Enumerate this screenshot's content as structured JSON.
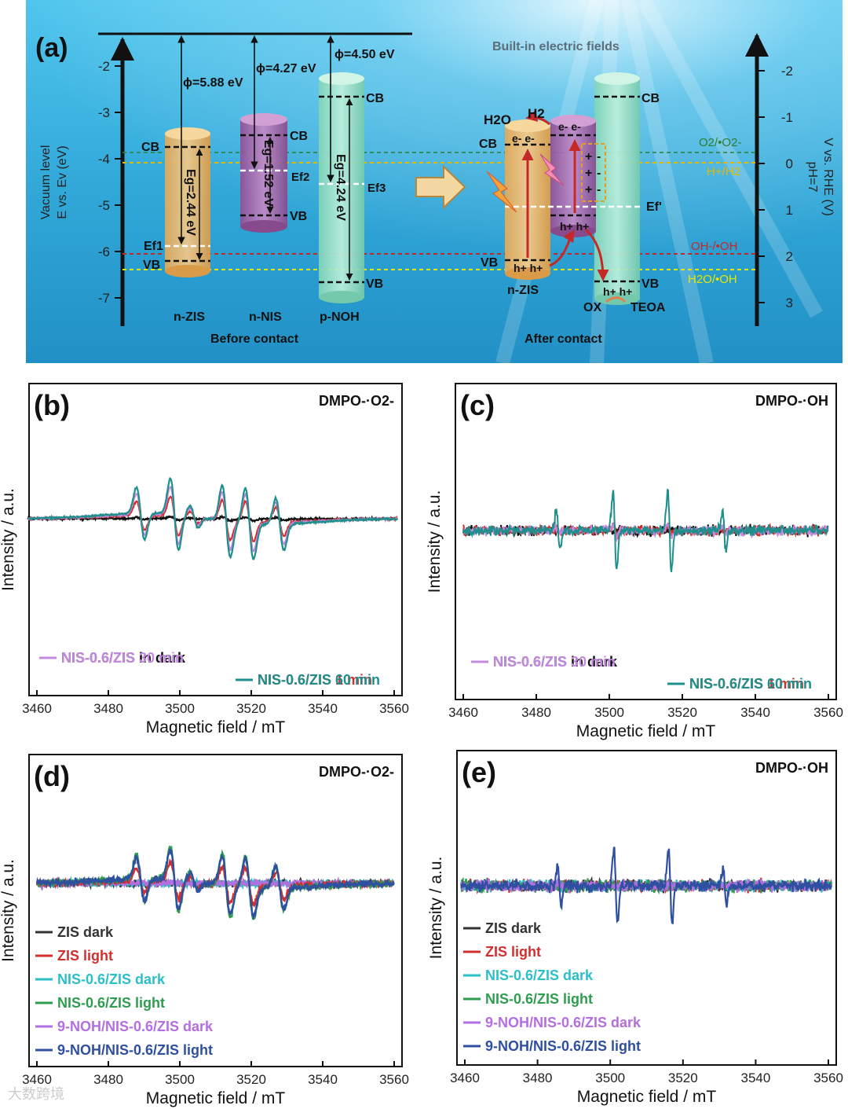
{
  "panel_a": {
    "label": "(a)",
    "left_axis_title_1": "Vacuum level",
    "left_axis_title_2": "E vs. Ev (eV)",
    "left_ticks": [
      "-2",
      "-3",
      "-4",
      "-5",
      "-6",
      "-7"
    ],
    "right_axis_title_1": "V vs. RHE (V)",
    "right_axis_title_2": "pH=7",
    "right_ticks": [
      "-2",
      "-1",
      "0",
      "1",
      "2",
      "3"
    ],
    "phi_zis": "ϕ=5.88 eV",
    "phi_nis": "ϕ=4.27 eV",
    "phi_noh": "ϕ=4.50 eV",
    "eg_zis": "Eg=2.44 eV",
    "eg_nis": "Eg=1.52 eV",
    "eg_noh": "Eg=4.24 eV",
    "cb": "CB",
    "vb": "VB",
    "ef1": "Ef1",
    "ef2": "Ef2",
    "ef3": "Ef3",
    "efr": "Ef'",
    "n_zis": "n-ZIS",
    "n_nis": "n-NIS",
    "p_noh": "p-NOH",
    "before": "Before contact",
    "after": "After contact",
    "builtin": "Built-in electric fields",
    "h2o": "H2O",
    "h2": "H2",
    "electrons": "e- e-",
    "holes": "h+ h+",
    "ox": "OX",
    "teoa": "TEOA",
    "o2_label": "O2/•O2-",
    "h_label": "H+/H2",
    "oh_label": "OH-/•OH",
    "h2o_oh_label": "H2O/•OH",
    "plus": "+",
    "minus": "-",
    "colors": {
      "o2": "#2e7d32",
      "h": "#e6b800",
      "oh": "#c62828",
      "h2o": "#e6e600",
      "zis": "#e8b86a",
      "nis": "#a86aa8",
      "noh": "#9ee0c0"
    }
  },
  "panels": [
    {
      "label": "(b)",
      "species": "DMPO-·O2-",
      "ylabel": "Intensity / a.u.",
      "xlabel": "Magnetic field / mT",
      "xticks": [
        "3460",
        "3480",
        "3500",
        "3520",
        "3540",
        "3560"
      ],
      "legend": [
        {
          "text": "NIS-0.6/ZIS in dark",
          "color": "#111111"
        },
        {
          "text": "NIS-0.6/ZIS 1 min",
          "color": "#d32f2f"
        },
        {
          "text": "NIS-0.6/ZIS 30 min",
          "color": "#c38ae0"
        },
        {
          "text": "NIS-0.6/ZIS 60 min",
          "color": "#1e8f8a"
        }
      ]
    },
    {
      "label": "(c)",
      "species": "DMPO-·OH",
      "ylabel": "Intensity / a.u.",
      "xlabel": "Magnetic field / mT",
      "xticks": [
        "3460",
        "3480",
        "3500",
        "3520",
        "3540",
        "3560"
      ],
      "legend": [
        {
          "text": "NIS-0.6/ZIS in dark",
          "color": "#111111"
        },
        {
          "text": "NIS-0.6/ZIS 1 min",
          "color": "#d32f2f"
        },
        {
          "text": "NIS-0.6/ZIS 30 min",
          "color": "#c38ae0"
        },
        {
          "text": "NIS-0.6/ZIS 60 min",
          "color": "#1e8f8a"
        }
      ]
    },
    {
      "label": "(d)",
      "species": "DMPO-·O2-",
      "ylabel": "Intensity / a.u.",
      "xlabel": "Magnetic field / mT",
      "xticks": [
        "3460",
        "3480",
        "3500",
        "3520",
        "3540",
        "3560"
      ],
      "legend": [
        {
          "text": "ZIS dark",
          "color": "#333333"
        },
        {
          "text": "ZIS light",
          "color": "#d32f2f"
        },
        {
          "text": "NIS-0.6/ZIS dark",
          "color": "#2bbfc8"
        },
        {
          "text": "NIS-0.6/ZIS light",
          "color": "#2e9d4f"
        },
        {
          "text": "9-NOH/NIS-0.6/ZIS dark",
          "color": "#b36ee0"
        },
        {
          "text": "9-NOH/NIS-0.6/ZIS light",
          "color": "#2f4fa0"
        }
      ]
    },
    {
      "label": "(e)",
      "species": "DMPO-·OH",
      "ylabel": "Intensity / a.u.",
      "xlabel": "Magnetic field / mT",
      "xticks": [
        "3460",
        "3480",
        "3500",
        "3520",
        "3540",
        "3560"
      ],
      "legend": [
        {
          "text": "ZIS dark",
          "color": "#333333"
        },
        {
          "text": "ZIS light",
          "color": "#d32f2f"
        },
        {
          "text": "NIS-0.6/ZIS dark",
          "color": "#2bbfc8"
        },
        {
          "text": "NIS-0.6/ZIS light",
          "color": "#2e9d4f"
        },
        {
          "text": "9-NOH/NIS-0.6/ZIS dark",
          "color": "#b36ee0"
        },
        {
          "text": "9-NOH/NIS-0.6/ZIS light",
          "color": "#2f4fa0"
        }
      ]
    }
  ],
  "chart_data": [
    {
      "type": "line",
      "title": "DMPO-·O2-",
      "xlabel": "Magnetic field / mT",
      "ylabel": "Intensity / a.u.",
      "xlim": [
        3460,
        3560
      ],
      "pattern": "superoxide_sextet",
      "peak_centers": [
        3489,
        3498,
        3504,
        3513,
        3519,
        3528
      ],
      "series": [
        {
          "name": "NIS-0.6/ZIS in dark",
          "amplitude": 0.05
        },
        {
          "name": "NIS-0.6/ZIS 1 min",
          "amplitude": 0.55
        },
        {
          "name": "NIS-0.6/ZIS 30 min",
          "amplitude": 0.8
        },
        {
          "name": "NIS-0.6/ZIS 60 min",
          "amplitude": 1.0
        }
      ]
    },
    {
      "type": "line",
      "title": "DMPO-·OH",
      "xlabel": "Magnetic field / mT",
      "ylabel": "Intensity / a.u.",
      "xlim": [
        3460,
        3560
      ],
      "pattern": "hydroxyl_quartet",
      "peak_centers": [
        3486,
        3501,
        3516,
        3531
      ],
      "peak_ratio": [
        1,
        2,
        2,
        1
      ],
      "series": [
        {
          "name": "NIS-0.6/ZIS in dark",
          "amplitude": 0.0
        },
        {
          "name": "NIS-0.6/ZIS 1 min",
          "amplitude": 0.1
        },
        {
          "name": "NIS-0.6/ZIS 30 min",
          "amplitude": 0.15
        },
        {
          "name": "NIS-0.6/ZIS 60 min",
          "amplitude": 1.0
        }
      ]
    },
    {
      "type": "line",
      "title": "DMPO-·O2-",
      "xlabel": "Magnetic field / mT",
      "ylabel": "Intensity / a.u.",
      "xlim": [
        3460,
        3560
      ],
      "pattern": "superoxide_sextet",
      "peak_centers": [
        3489,
        3498,
        3504,
        3513,
        3519,
        3528
      ],
      "series": [
        {
          "name": "ZIS dark",
          "amplitude": 0.0
        },
        {
          "name": "ZIS light",
          "amplitude": 0.6
        },
        {
          "name": "NIS-0.6/ZIS dark",
          "amplitude": 0.0
        },
        {
          "name": "NIS-0.6/ZIS light",
          "amplitude": 1.05
        },
        {
          "name": "9-NOH/NIS-0.6/ZIS dark",
          "amplitude": 0.0
        },
        {
          "name": "9-NOH/NIS-0.6/ZIS light",
          "amplitude": 0.95
        }
      ]
    },
    {
      "type": "line",
      "title": "DMPO-·OH",
      "xlabel": "Magnetic field / mT",
      "ylabel": "Intensity / a.u.",
      "xlim": [
        3460,
        3560
      ],
      "pattern": "hydroxyl_quartet",
      "peak_centers": [
        3486,
        3501,
        3516,
        3531
      ],
      "peak_ratio": [
        1,
        2,
        2,
        1
      ],
      "series": [
        {
          "name": "ZIS dark",
          "amplitude": 0.0
        },
        {
          "name": "ZIS light",
          "amplitude": 0.0
        },
        {
          "name": "NIS-0.6/ZIS dark",
          "amplitude": 0.0
        },
        {
          "name": "NIS-0.6/ZIS light",
          "amplitude": 0.0
        },
        {
          "name": "9-NOH/NIS-0.6/ZIS dark",
          "amplitude": 0.0
        },
        {
          "name": "9-NOH/NIS-0.6/ZIS light",
          "amplitude": 1.0
        }
      ]
    }
  ],
  "watermark": "大数跨境"
}
